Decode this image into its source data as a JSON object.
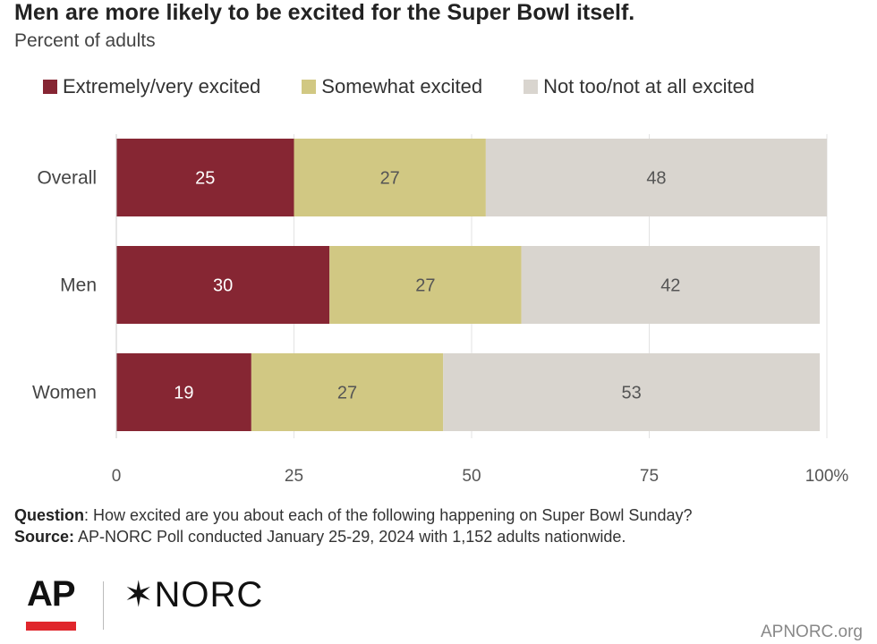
{
  "title": "Men are more likely to be excited for the Super Bowl itself.",
  "subtitle": "Percent of adults",
  "legend": [
    {
      "label": "Extremely/very excited",
      "color": "#862633"
    },
    {
      "label": "Somewhat excited",
      "color": "#d1c883"
    },
    {
      "label": "Not too/not at all excited",
      "color": "#d9d5cf"
    }
  ],
  "chart_data": {
    "type": "bar",
    "orientation": "horizontal",
    "stacked": true,
    "categories": [
      "Overall",
      "Men",
      "Women"
    ],
    "series": [
      {
        "name": "Extremely/very excited",
        "values": [
          25,
          30,
          19
        ],
        "color": "#862633"
      },
      {
        "name": "Somewhat excited",
        "values": [
          27,
          27,
          27
        ],
        "color": "#d1c883"
      },
      {
        "name": "Not too/not at all excited",
        "values": [
          48,
          42,
          53
        ],
        "color": "#d9d5cf"
      }
    ],
    "xticks": [
      "0",
      "25",
      "50",
      "75",
      "100%"
    ],
    "xlim": [
      0,
      100
    ],
    "grid": true,
    "legend_position": "top"
  },
  "notes": {
    "question_label": "Question",
    "question_text": ": How excited are you about each of the following happening on Super Bowl Sunday?",
    "source_label": "Source:",
    "source_text": " AP-NORC Poll conducted January 25-29, 2024 with 1,152 adults nationwide."
  },
  "logos": {
    "ap": "AP",
    "norc": "✶NORC",
    "site": "APNORC.org"
  }
}
